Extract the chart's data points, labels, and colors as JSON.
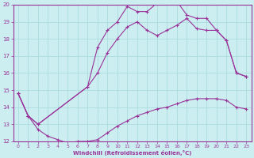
{
  "background_color": "#cceef0",
  "grid_color": "#aadddd",
  "line_color": "#993399",
  "marker_color": "#993399",
  "xlabel": "Windchill (Refroidissement éolien,°C)",
  "xlim": [
    -0.5,
    23.5
  ],
  "ylim": [
    12,
    20
  ],
  "yticks": [
    12,
    13,
    14,
    15,
    16,
    17,
    18,
    19,
    20
  ],
  "xticks": [
    0,
    1,
    2,
    3,
    4,
    5,
    6,
    7,
    8,
    9,
    10,
    11,
    12,
    13,
    14,
    15,
    16,
    17,
    18,
    19,
    20,
    21,
    22,
    23
  ],
  "curve_upper_x": [
    0,
    1,
    2,
    7,
    8,
    9,
    10,
    11,
    12,
    13,
    14,
    15,
    16,
    17,
    18,
    19,
    20,
    21,
    22,
    23
  ],
  "curve_upper_y": [
    14.8,
    13.5,
    13.0,
    15.2,
    17.5,
    18.5,
    19.0,
    19.9,
    19.6,
    19.6,
    20.1,
    20.2,
    20.2,
    19.4,
    19.2,
    19.2,
    18.5,
    17.9,
    16.0,
    15.8
  ],
  "curve_mid_x": [
    0,
    1,
    2,
    7,
    8,
    9,
    10,
    11,
    12,
    13,
    14,
    15,
    16,
    17,
    18,
    19,
    20,
    21,
    22,
    23
  ],
  "curve_mid_y": [
    14.8,
    13.5,
    13.0,
    15.2,
    16.0,
    17.2,
    18.0,
    18.7,
    19.0,
    18.5,
    18.2,
    18.5,
    18.8,
    19.2,
    18.6,
    18.5,
    18.5,
    17.9,
    16.0,
    15.8
  ],
  "curve_lower_x": [
    0,
    1,
    2,
    3,
    4,
    5,
    6,
    7,
    8,
    9,
    10,
    11,
    12,
    13,
    14,
    15,
    16,
    17,
    18,
    19,
    20,
    21,
    22,
    23
  ],
  "curve_lower_y": [
    14.8,
    13.5,
    12.7,
    12.3,
    12.1,
    11.9,
    12.0,
    12.0,
    12.1,
    12.5,
    12.9,
    13.2,
    13.5,
    13.7,
    13.9,
    14.0,
    14.2,
    14.4,
    14.5,
    14.5,
    14.5,
    14.4,
    14.0,
    13.9
  ]
}
